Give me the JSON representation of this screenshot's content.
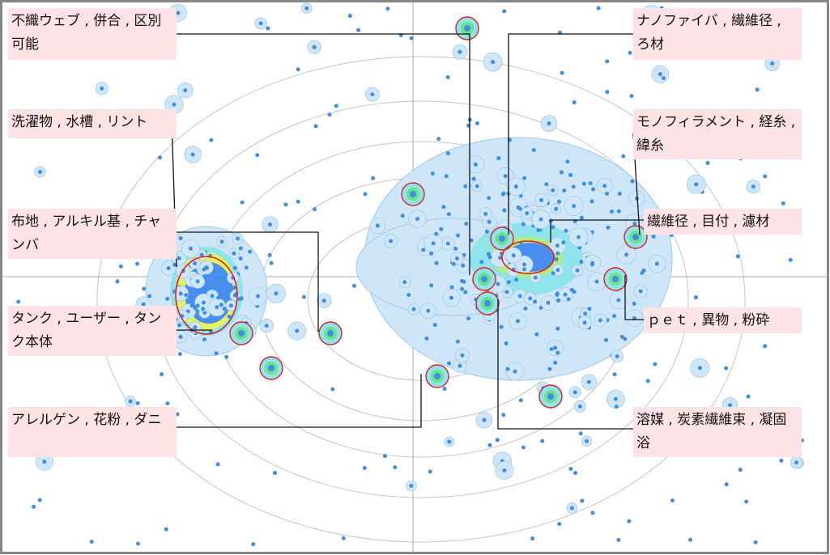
{
  "labels": [
    "不織ウェブ , 併合 , 区別可能",
    "洗濯物 , 水槽 , リント",
    "布地 , アルキル基 , チャンバ",
    "タンク , ユーザー , タンク本体",
    "アレルゲン , 花粉 , ダニ",
    "ナノファイバ , 繊維径 , ろ材",
    "モノフィラメント , 経糸 , 緯糸",
    "繊維径 , 目付 , 濾材",
    "ｐｅｔ , 異物 , 粉砕",
    "溶媒 , 炭素繊維束 , 凝固浴"
  ]
}
